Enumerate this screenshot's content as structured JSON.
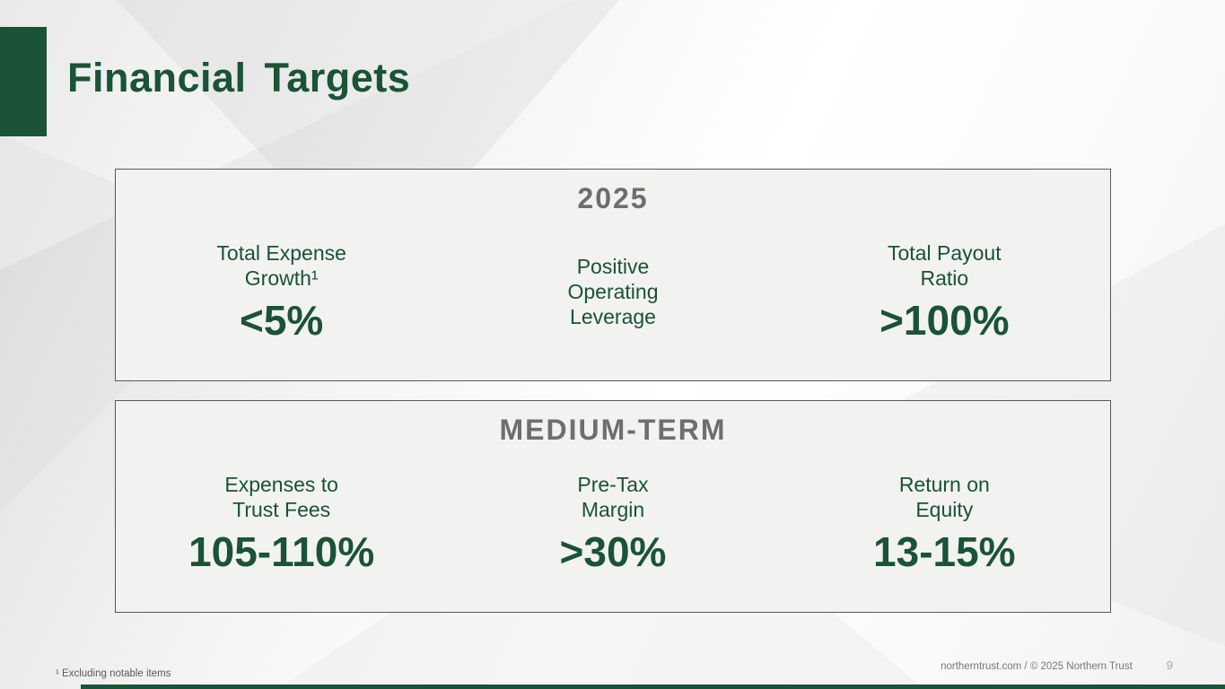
{
  "slide": {
    "title": "Financial Targets",
    "footnote": "¹ Excluding notable items",
    "footer": "northerntrust.com / © 2025 Northern Trust",
    "page_number": "9"
  },
  "boxes": [
    {
      "heading": "2025",
      "metrics": [
        {
          "label": "Total Expense\nGrowth¹",
          "value": "<5%"
        },
        {
          "label": "Positive\nOperating\nLeverage",
          "value": ""
        },
        {
          "label": "Total Payout\nRatio",
          "value": ">100%"
        }
      ]
    },
    {
      "heading": "MEDIUM-TERM",
      "metrics": [
        {
          "label": "Expenses to\nTrust Fees",
          "value": "105-110%"
        },
        {
          "label": "Pre-Tax\nMargin",
          "value": ">30%"
        },
        {
          "label": "Return on\nEquity",
          "value": "13-15%"
        }
      ]
    }
  ],
  "colors": {
    "brand_green": "#1A5336",
    "heading_gray": "#6D6E71"
  }
}
